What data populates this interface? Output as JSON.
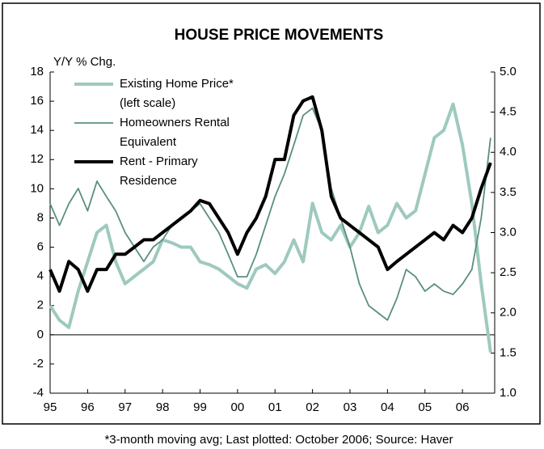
{
  "chart_data": {
    "type": "line",
    "title": "HOUSE PRICE MOVEMENTS",
    "y_label": "Y/Y % Chg.",
    "footnote": "*3-month moving avg; Last plotted: October 2006; Source: Haver",
    "x": [
      1995,
      1995.25,
      1995.5,
      1995.75,
      1996,
      1996.25,
      1996.5,
      1996.75,
      1997,
      1997.25,
      1997.5,
      1997.75,
      1998,
      1998.25,
      1998.5,
      1998.75,
      1999,
      1999.25,
      1999.5,
      1999.75,
      2000,
      2000.25,
      2000.5,
      2000.75,
      2001,
      2001.25,
      2001.5,
      2001.75,
      2002,
      2002.25,
      2002.5,
      2002.75,
      2003,
      2003.25,
      2003.5,
      2003.75,
      2004,
      2004.25,
      2004.5,
      2004.75,
      2005,
      2005.25,
      2005.5,
      2005.75,
      2006,
      2006.25,
      2006.5,
      2006.75
    ],
    "series": [
      {
        "name": [
          "Existing Home Price*",
          "(left scale)"
        ],
        "color": "#9ec9bf",
        "width": 4,
        "axis": "y",
        "values": [
          2,
          1,
          0.5,
          3,
          5,
          7,
          7.5,
          5,
          3.5,
          4,
          4.5,
          5,
          6.5,
          6.3,
          6,
          6,
          5,
          4.8,
          4.5,
          4,
          3.5,
          3.2,
          4.5,
          4.8,
          4.2,
          5,
          6.5,
          5,
          9,
          7,
          6.5,
          7.5,
          6,
          7,
          8.8,
          7,
          7.5,
          9,
          8,
          8.5,
          11,
          13.5,
          14,
          15.8,
          13,
          9,
          3.5,
          -1.2
        ]
      },
      {
        "name": [
          "Homeowners Rental",
          "Equivalent"
        ],
        "color": "#5a8f7f",
        "width": 1.8,
        "axis": "y2",
        "values": [
          3.36,
          3.09,
          3.36,
          3.55,
          3.27,
          3.64,
          3.45,
          3.27,
          3.0,
          2.82,
          2.64,
          2.82,
          2.91,
          3.09,
          3.18,
          3.27,
          3.36,
          3.18,
          3.0,
          2.73,
          2.45,
          2.45,
          2.73,
          3.09,
          3.45,
          3.73,
          4.09,
          4.46,
          4.55,
          4.27,
          3.55,
          3.18,
          2.82,
          2.36,
          2.09,
          2.0,
          1.91,
          2.18,
          2.54,
          2.45,
          2.27,
          2.36,
          2.27,
          2.23,
          2.36,
          2.54,
          3.18,
          4.18
        ]
      },
      {
        "name": [
          "Rent - Primary",
          "Residence"
        ],
        "color": "#000000",
        "width": 4,
        "axis": "y2",
        "values": [
          2.54,
          2.27,
          2.64,
          2.54,
          2.27,
          2.54,
          2.54,
          2.73,
          2.73,
          2.82,
          2.91,
          2.91,
          3.0,
          3.09,
          3.18,
          3.27,
          3.4,
          3.36,
          3.18,
          3.0,
          2.73,
          3.0,
          3.18,
          3.45,
          3.91,
          3.91,
          4.46,
          4.64,
          4.69,
          4.27,
          3.45,
          3.18,
          3.09,
          3.0,
          2.91,
          2.82,
          2.54,
          2.64,
          2.73,
          2.82,
          2.91,
          3.0,
          2.91,
          3.09,
          3.0,
          3.18,
          3.55,
          3.87
        ]
      }
    ],
    "xlim": [
      1995,
      2006.86
    ],
    "xticks": [
      {
        "value": 1995,
        "label": "95"
      },
      {
        "value": 1996,
        "label": "96"
      },
      {
        "value": 1997,
        "label": "97"
      },
      {
        "value": 1998,
        "label": "98"
      },
      {
        "value": 1999,
        "label": "99"
      },
      {
        "value": 2000,
        "label": "00"
      },
      {
        "value": 2001,
        "label": "01"
      },
      {
        "value": 2002,
        "label": "02"
      },
      {
        "value": 2003,
        "label": "03"
      },
      {
        "value": 2004,
        "label": "04"
      },
      {
        "value": 2005,
        "label": "05"
      },
      {
        "value": 2006,
        "label": "06"
      }
    ],
    "ylim": [
      -4,
      18
    ],
    "yticks": [
      -4,
      -2,
      0,
      2,
      4,
      6,
      8,
      10,
      12,
      14,
      16,
      18
    ],
    "y2lim": [
      1.0,
      5.0
    ],
    "y2ticks": [
      {
        "value": 1.0,
        "label": "1.0"
      },
      1.5,
      {
        "value": 2.0,
        "label": "2.0"
      },
      2.5,
      {
        "value": 3.0,
        "label": "3.0"
      },
      3.5,
      {
        "value": 4.0,
        "label": "4.0"
      },
      4.5,
      {
        "value": 5.0,
        "label": "5.0"
      }
    ],
    "grid": false
  }
}
